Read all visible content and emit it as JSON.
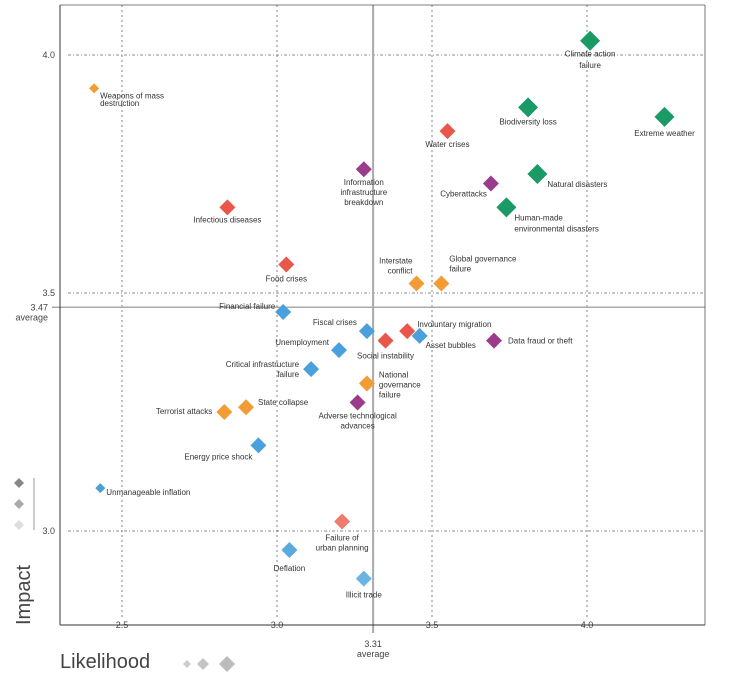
{
  "chart_data": {
    "type": "scatter",
    "xlabel": "Likelihood",
    "ylabel": "Impact",
    "xlim": [
      2.31,
      4.38
    ],
    "ylim": [
      2.82,
      4.1
    ],
    "x_ticks": [
      "2.5",
      "3.0",
      "3.5",
      "4.0"
    ],
    "y_ticks": [
      "3.0",
      "3.5",
      "4.0"
    ],
    "x_average": {
      "value": 3.31,
      "label": "3.31",
      "sub": "average"
    },
    "y_average": {
      "value": 3.47,
      "label": "3.47",
      "sub": "average"
    },
    "grid": "dotted",
    "colors": {
      "environmental": "#1a9a64",
      "geopolitical": "#f39c35",
      "societal": "#e9574a",
      "economic": "#4aa0db",
      "technological": "#9b3b8b"
    },
    "points": [
      {
        "label": "Climate action failure",
        "x": 4.01,
        "y": 4.03,
        "size": 3,
        "color": "#1a9a64"
      },
      {
        "label": "Biodiversity loss",
        "x": 3.81,
        "y": 3.89,
        "size": 3,
        "color": "#1a9a64"
      },
      {
        "label": "Extreme weather",
        "x": 4.25,
        "y": 3.87,
        "size": 3,
        "color": "#1a9a64"
      },
      {
        "label": "Water crises",
        "x": 3.55,
        "y": 3.84,
        "size": 2,
        "color": "#e9574a"
      },
      {
        "label": "Weapons of mass destruction",
        "x": 2.41,
        "y": 3.93,
        "size": 1,
        "color": "#f39c35"
      },
      {
        "label": "Information infrastructure breakdown",
        "x": 3.28,
        "y": 3.76,
        "size": 2,
        "color": "#9b3b8b"
      },
      {
        "label": "Natural disasters",
        "x": 3.84,
        "y": 3.75,
        "size": 3,
        "color": "#1a9a64"
      },
      {
        "label": "Cyberattacks",
        "x": 3.69,
        "y": 3.73,
        "size": 2,
        "color": "#9b3b8b"
      },
      {
        "label": "Human-made environmental disasters",
        "x": 3.74,
        "y": 3.68,
        "size": 3,
        "color": "#1a9a64"
      },
      {
        "label": "Infectious diseases",
        "x": 2.84,
        "y": 3.68,
        "size": 2,
        "color": "#e9574a"
      },
      {
        "label": "Food crises",
        "x": 3.03,
        "y": 3.56,
        "size": 2,
        "color": "#e9574a"
      },
      {
        "label": "Interstate conflict",
        "x": 3.45,
        "y": 3.52,
        "size": 2,
        "color": "#f39c35"
      },
      {
        "label": "Global governance failure",
        "x": 3.53,
        "y": 3.52,
        "size": 2,
        "color": "#f39c35"
      },
      {
        "label": "Financial failure",
        "x": 3.02,
        "y": 3.46,
        "size": 2,
        "color": "#4aa0db"
      },
      {
        "label": "Fiscal crises",
        "x": 3.29,
        "y": 3.42,
        "size": 2,
        "color": "#4aa0db"
      },
      {
        "label": "Involuntary migration",
        "x": 3.42,
        "y": 3.42,
        "size": 2,
        "color": "#e9574a"
      },
      {
        "label": "Social instability",
        "x": 3.35,
        "y": 3.4,
        "size": 2,
        "color": "#e9574a"
      },
      {
        "label": "Asset bubbles",
        "x": 3.46,
        "y": 3.41,
        "size": 2,
        "color": "#4aa0db"
      },
      {
        "label": "Data fraud or theft",
        "x": 3.7,
        "y": 3.4,
        "size": 2,
        "color": "#9b3b8b"
      },
      {
        "label": "Unemployment",
        "x": 3.2,
        "y": 3.38,
        "size": 2,
        "color": "#4aa0db"
      },
      {
        "label": "Critical infrastructure failure",
        "x": 3.11,
        "y": 3.34,
        "size": 2,
        "color": "#4aa0db"
      },
      {
        "label": "National governance failure",
        "x": 3.29,
        "y": 3.31,
        "size": 2,
        "color": "#f39c35"
      },
      {
        "label": "Adverse technological advances",
        "x": 3.26,
        "y": 3.27,
        "size": 2,
        "color": "#9b3b8b"
      },
      {
        "label": "State collapse",
        "x": 2.9,
        "y": 3.26,
        "size": 2,
        "color": "#f39c35"
      },
      {
        "label": "Terrorist attacks",
        "x": 2.83,
        "y": 3.25,
        "size": 2,
        "color": "#f39c35"
      },
      {
        "label": "Energy price shock",
        "x": 2.94,
        "y": 3.18,
        "size": 2,
        "color": "#4aa0db"
      },
      {
        "label": "Unmanageable inflation",
        "x": 2.43,
        "y": 3.09,
        "size": 1,
        "color": "#4aa0db"
      },
      {
        "label": "Failure of urban planning",
        "x": 3.21,
        "y": 3.02,
        "size": 2,
        "color": "#ee7b6e"
      },
      {
        "label": "Deflation",
        "x": 3.04,
        "y": 2.96,
        "size": 2,
        "color": "#5aaae0"
      },
      {
        "label": "Illicit trade",
        "x": 3.28,
        "y": 2.9,
        "size": 2,
        "color": "#6cb4e6"
      }
    ]
  }
}
